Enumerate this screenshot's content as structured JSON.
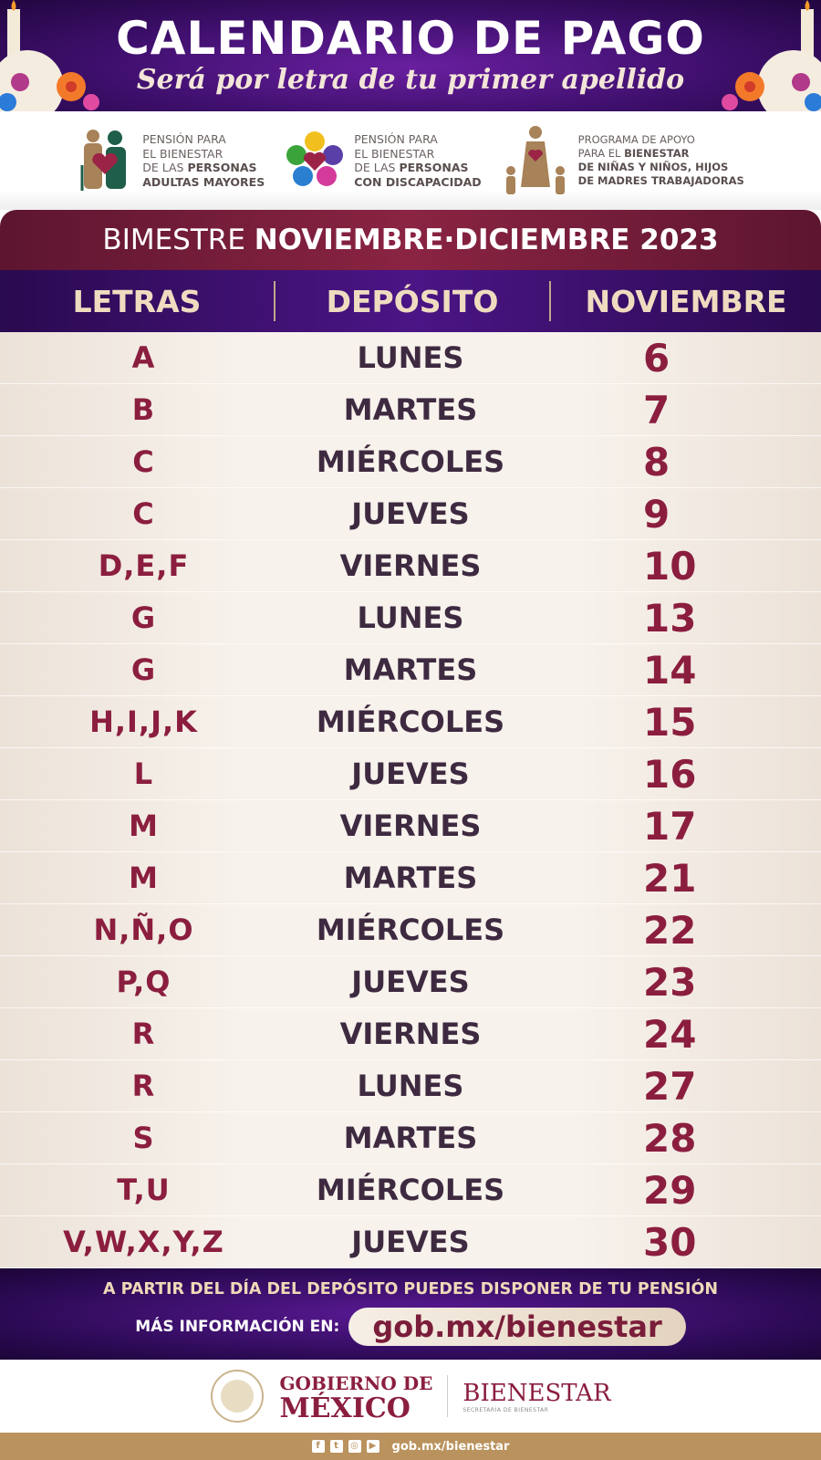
{
  "header": {
    "title": "CALENDARIO DE PAGO",
    "subtitle": "Será por letra de tu primer apellido"
  },
  "programs": [
    {
      "icon": "elderly-couple-heart-icon",
      "line1": "PENSIÓN PARA",
      "line2": "EL BIENESTAR",
      "line3_pre": "DE LAS ",
      "line3_bold": "PERSONAS",
      "line4": "ADULTAS MAYORES"
    },
    {
      "icon": "disability-flower-heart-icon",
      "line1": "PENSIÓN PARA",
      "line2": "EL BIENESTAR",
      "line3_pre": "DE  LAS ",
      "line3_bold": "PERSONAS",
      "line4": "CON DISCAPACIDAD"
    },
    {
      "icon": "mother-children-heart-icon",
      "line1": "PROGRAMA DE APOYO",
      "line2_pre": "PARA EL ",
      "line2_bold": "BIENESTAR",
      "line3": "DE NIÑAS Y NIÑOS, HIJOS",
      "line4": "DE MADRES TRABAJADORAS"
    }
  ],
  "bimestre": {
    "label": "BIMESTRE ",
    "period": "NOVIEMBRE·DICIEMBRE 2023"
  },
  "columns": [
    "LETRAS",
    "DEPÓSITO",
    "NOVIEMBRE"
  ],
  "rows": [
    [
      "A",
      "LUNES",
      "6"
    ],
    [
      "B",
      "MARTES",
      "7"
    ],
    [
      "C",
      "MIÉRCOLES",
      "8"
    ],
    [
      "C",
      "JUEVES",
      "9"
    ],
    [
      "D,E,F",
      "VIERNES",
      "10"
    ],
    [
      "G",
      "LUNES",
      "13"
    ],
    [
      "G",
      "MARTES",
      "14"
    ],
    [
      "H,I,J,K",
      "MIÉRCOLES",
      "15"
    ],
    [
      "L",
      "JUEVES",
      "16"
    ],
    [
      "M",
      "VIERNES",
      "17"
    ],
    [
      "M",
      "MARTES",
      "21"
    ],
    [
      "N,Ñ,O",
      "MIÉRCOLES",
      "22"
    ],
    [
      "P,Q",
      "JUEVES",
      "23"
    ],
    [
      "R",
      "VIERNES",
      "24"
    ],
    [
      "R",
      "LUNES",
      "27"
    ],
    [
      "S",
      "MARTES",
      "28"
    ],
    [
      "T,U",
      "MIÉRCOLES",
      "29"
    ],
    [
      "V,W,X,Y,Z",
      "JUEVES",
      "30"
    ]
  ],
  "footer": {
    "notice": "A PARTIR DEL DÍA DEL DEPÓSITO PUEDES DISPONER DE TU PENSIÓN",
    "more": "MÁS INFORMACIÓN EN:",
    "url": "gob.mx/bienestar"
  },
  "logos": {
    "gob_line1": "GOBIERNO DE",
    "gob_line2": "MÉXICO",
    "bienestar": "BIENESTAR",
    "bienestar_sub": "SECRETARÍA DE BIENESTAR",
    "seal_text": "ESTADOS UNIDOS MEXICANOS"
  },
  "bottom": {
    "social": [
      "facebook-icon",
      "twitter-icon",
      "instagram-icon",
      "youtube-icon"
    ],
    "url": "gob.mx/bienestar"
  },
  "colors": {
    "purple": "#3d0f6b",
    "maroon": "#8b1e3f",
    "tan": "#b9925d",
    "cream": "#f7f2ec"
  }
}
